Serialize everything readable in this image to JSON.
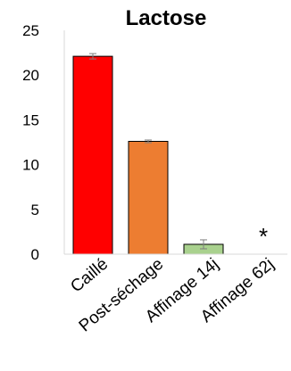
{
  "chart_data": {
    "type": "bar",
    "title": "Lactose",
    "xlabel": "",
    "ylabel": "",
    "ylim": [
      0,
      25
    ],
    "yticks": [
      0,
      5,
      10,
      15,
      20,
      25
    ],
    "grid": false,
    "categories": [
      "Caillé",
      "Post-séchage",
      "Affinage 14j",
      "Affinage 62j"
    ],
    "values": [
      22.1,
      12.6,
      1.1,
      0
    ],
    "errors": [
      0.3,
      0.15,
      0.5,
      0
    ],
    "colors": [
      "#ff0000",
      "#ed7d31",
      "#a9d18e",
      "#a9d18e"
    ],
    "annotations": [
      {
        "category": "Affinage 62j",
        "text": "*"
      }
    ]
  }
}
